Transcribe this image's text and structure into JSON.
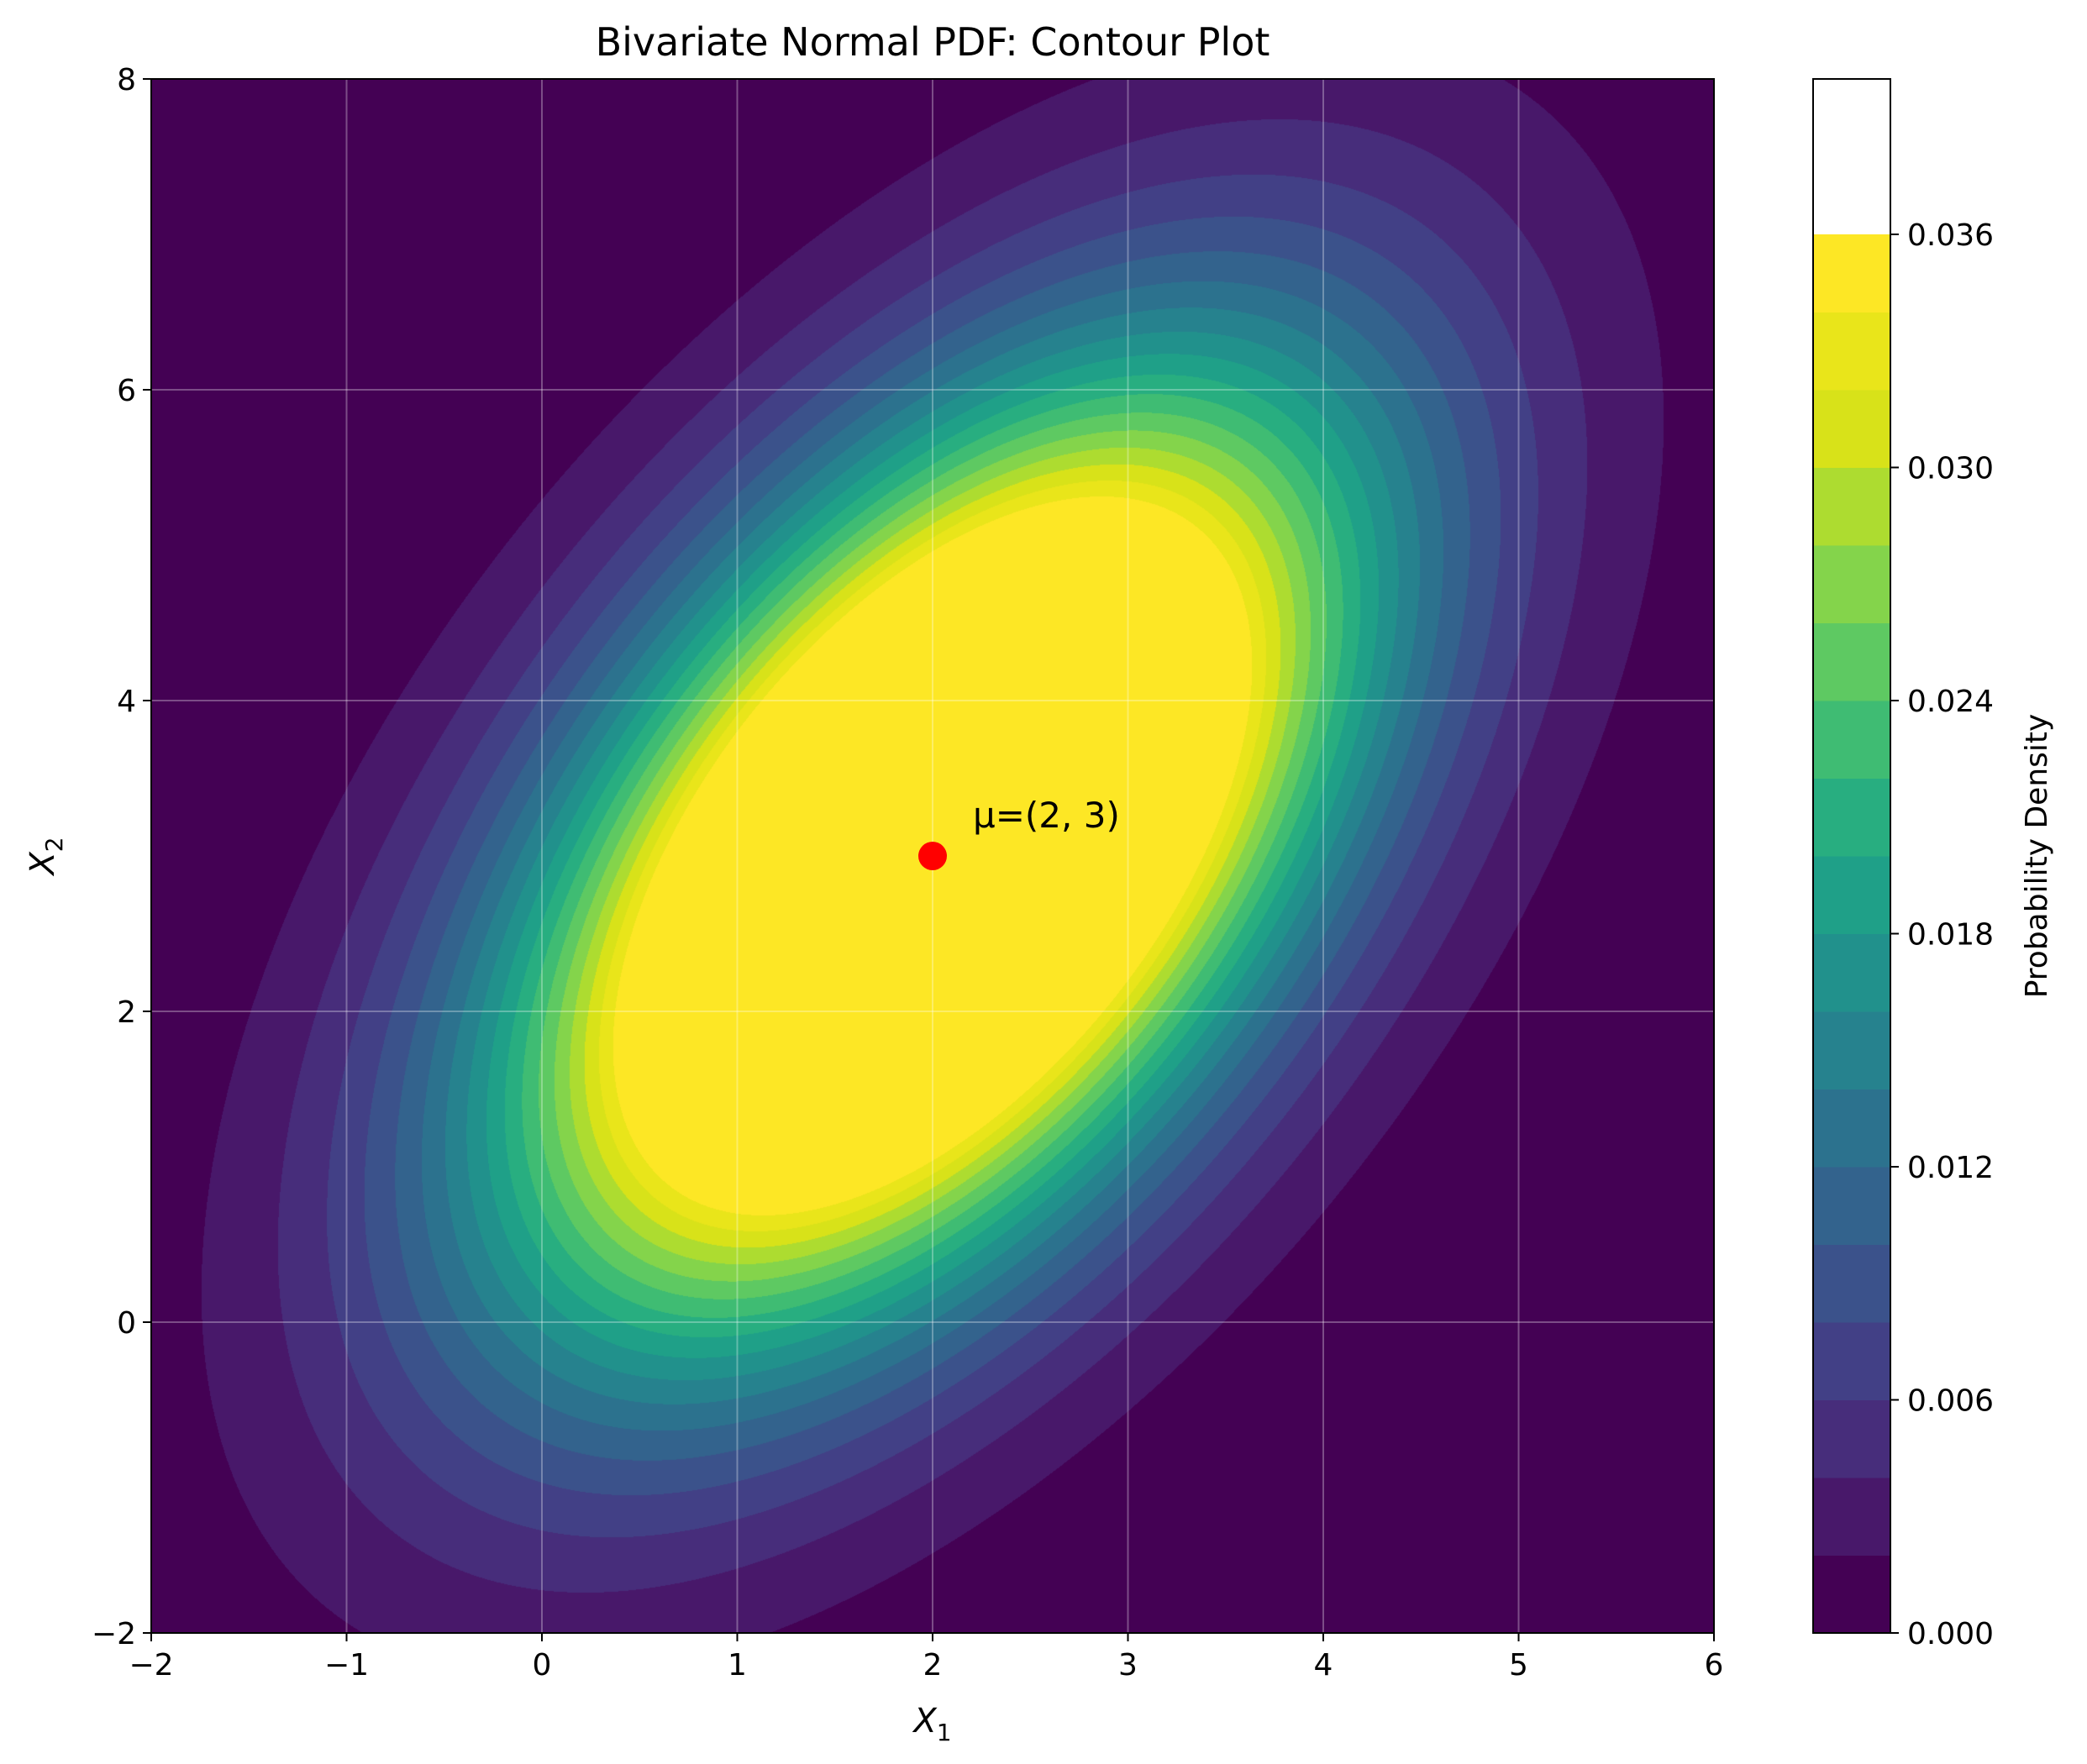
{
  "chart_data": {
    "type": "contour",
    "title": "Bivariate Normal PDF: Contour Plot",
    "xlabel": "X",
    "xlabel_sub": "1",
    "ylabel": "X",
    "ylabel_sub": "2",
    "xlim": [
      -2,
      6
    ],
    "ylim": [
      -2,
      8
    ],
    "xticks": [
      -2,
      -1,
      0,
      1,
      2,
      3,
      4,
      5,
      6
    ],
    "xtick_labels": [
      "−2",
      "−1",
      "0",
      "1",
      "2",
      "3",
      "4",
      "5",
      "6"
    ],
    "yticks": [
      -2,
      0,
      2,
      4,
      6,
      8
    ],
    "ytick_labels": [
      "−2",
      "0",
      "2",
      "4",
      "6",
      "8"
    ],
    "grid": true,
    "colormap": "viridis",
    "mean": [
      2,
      3
    ],
    "covariance": [
      [
        2,
        1.5
      ],
      [
        1.5,
        4
      ]
    ],
    "levels": [
      0.0,
      0.002,
      0.004,
      0.006,
      0.008,
      0.01,
      0.012,
      0.014,
      0.016,
      0.018,
      0.02,
      0.022,
      0.024,
      0.026,
      0.028,
      0.03,
      0.032,
      0.034,
      0.036,
      0.038,
      0.04
    ],
    "level_colors": [
      "#440154",
      "#48186a",
      "#472d7b",
      "#424086",
      "#3b528b",
      "#33638d",
      "#2c728e",
      "#26828e",
      "#21918c",
      "#1fa088",
      "#28ae80",
      "#3fbc73",
      "#5ec962",
      "#84d44b",
      "#addc30",
      "#d8e219",
      "#e9e51a",
      "#fde725"
    ],
    "colorbar": {
      "label": "Probability Density",
      "ticks": [
        0.0,
        0.006,
        0.012,
        0.018,
        0.024,
        0.03,
        0.036
      ],
      "tick_labels": [
        "0.000",
        "0.006",
        "0.012",
        "0.018",
        "0.024",
        "0.030",
        "0.036"
      ],
      "range": [
        0.0,
        0.04
      ]
    },
    "annotation": {
      "text": "μ=(2, 3)",
      "point": [
        2,
        3
      ],
      "marker_color": "#ff0000"
    }
  }
}
